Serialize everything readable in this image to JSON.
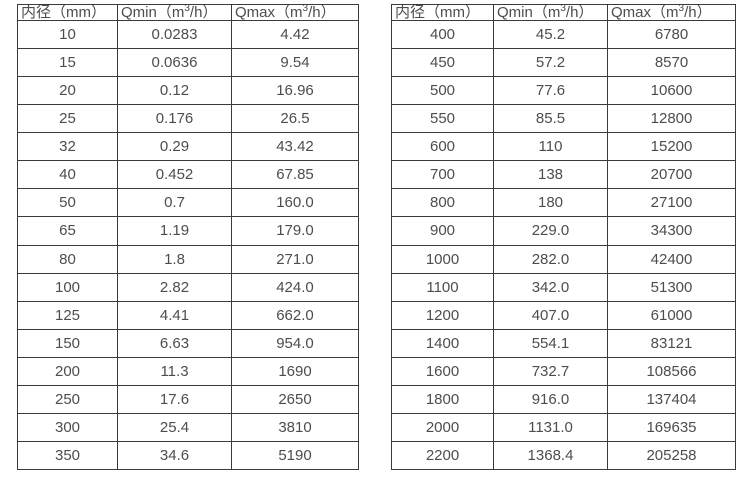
{
  "colors": {
    "background": "#ffffff",
    "table_border": "#3a3a3a",
    "text": "#4d4d4d"
  },
  "tables": [
    {
      "name": "flow-range-table-small-diameters",
      "headers": [
        {
          "pre": "内径（mm）",
          "sup": "",
          "post": ""
        },
        {
          "pre": "Qmin（m",
          "sup": "3",
          "post": "/h）"
        },
        {
          "pre": "Qmax（m",
          "sup": "3",
          "post": "/h）"
        }
      ],
      "rows": [
        [
          "10",
          "0.0283",
          "4.42"
        ],
        [
          "15",
          "0.0636",
          "9.54"
        ],
        [
          "20",
          "0.12",
          "16.96"
        ],
        [
          "25",
          "0.176",
          "26.5"
        ],
        [
          "32",
          "0.29",
          "43.42"
        ],
        [
          "40",
          "0.452",
          "67.85"
        ],
        [
          "50",
          "0.7",
          "160.0"
        ],
        [
          "65",
          "1.19",
          "179.0"
        ],
        [
          "80",
          "1.8",
          "271.0"
        ],
        [
          "100",
          "2.82",
          "424.0"
        ],
        [
          "125",
          "4.41",
          "662.0"
        ],
        [
          "150",
          "6.63",
          "954.0"
        ],
        [
          "200",
          "11.3",
          "1690"
        ],
        [
          "250",
          "17.6",
          "2650"
        ],
        [
          "300",
          "25.4",
          "3810"
        ],
        [
          "350",
          "34.6",
          "5190"
        ]
      ]
    },
    {
      "name": "flow-range-table-large-diameters",
      "headers": [
        {
          "pre": "内径（mm）",
          "sup": "",
          "post": ""
        },
        {
          "pre": "Qmin（m",
          "sup": "3",
          "post": "/h）"
        },
        {
          "pre": "Qmax（m",
          "sup": "3",
          "post": "/h）"
        }
      ],
      "rows": [
        [
          "400",
          "45.2",
          "6780"
        ],
        [
          "450",
          "57.2",
          "8570"
        ],
        [
          "500",
          "77.6",
          "10600"
        ],
        [
          "550",
          "85.5",
          "12800"
        ],
        [
          "600",
          "110",
          "15200"
        ],
        [
          "700",
          "138",
          "20700"
        ],
        [
          "800",
          "180",
          "27100"
        ],
        [
          "900",
          "229.0",
          "34300"
        ],
        [
          "1000",
          "282.0",
          "42400"
        ],
        [
          "1100",
          "342.0",
          "51300"
        ],
        [
          "1200",
          "407.0",
          "61000"
        ],
        [
          "1400",
          "554.1",
          "83121"
        ],
        [
          "1600",
          "732.7",
          "108566"
        ],
        [
          "1800",
          "916.0",
          "137404"
        ],
        [
          "2000",
          "1131.0",
          "169635"
        ],
        [
          "2200",
          "1368.4",
          "205258"
        ]
      ]
    }
  ]
}
